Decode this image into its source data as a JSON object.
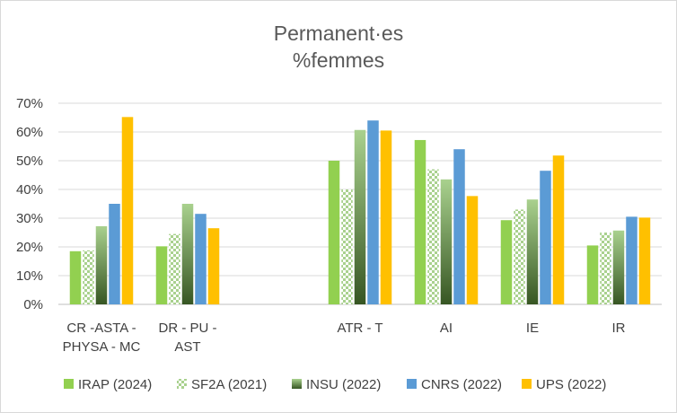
{
  "chart_data": {
    "type": "bar",
    "title": [
      "Permanent·es",
      "%femmes"
    ],
    "categories": [
      [
        "CR -ASTA -",
        "PHYSA - MC"
      ],
      [
        "DR - PU -",
        "AST"
      ],
      [
        ""
      ],
      [
        "ATR - T"
      ],
      [
        "AI"
      ],
      [
        "IE"
      ],
      [
        "IR"
      ]
    ],
    "series": [
      {
        "name": "IRAP (2024)",
        "color": "#92d050",
        "pattern": "solid",
        "values": [
          18.5,
          20.2,
          null,
          50.0,
          57.2,
          29.3,
          20.5
        ]
      },
      {
        "name": "SF2A (2021)",
        "color": "#a9d18e",
        "pattern": "checker",
        "values": [
          18.8,
          24.5,
          null,
          40.0,
          47.0,
          33.0,
          25.0
        ]
      },
      {
        "name": "INSU (2022)",
        "color": "#70ad47",
        "pattern": "gradient",
        "values": [
          27.2,
          35.0,
          null,
          60.7,
          43.5,
          36.5,
          25.7
        ]
      },
      {
        "name": "CNRS (2022)",
        "color": "#5b9bd5",
        "pattern": "solid",
        "values": [
          35.0,
          31.5,
          null,
          64.0,
          54.0,
          46.5,
          30.5
        ]
      },
      {
        "name": "UPS (2022)",
        "color": "#ffc000",
        "pattern": "solid",
        "values": [
          65.2,
          26.5,
          null,
          60.5,
          37.7,
          51.8,
          30.2
        ]
      }
    ],
    "ylim": [
      0,
      70
    ],
    "yticks": [
      0,
      10,
      20,
      30,
      40,
      50,
      60,
      70
    ],
    "ytick_format": "percent",
    "grid": true,
    "legend_position": "bottom"
  }
}
